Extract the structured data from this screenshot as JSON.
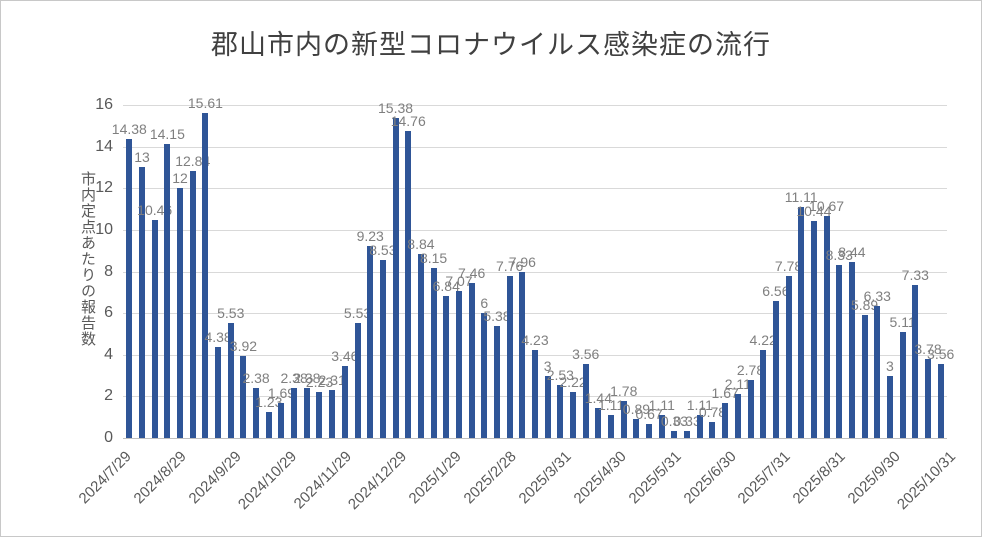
{
  "title": "郡山市内の新型コロナウイルス感染症の流行",
  "y_axis": {
    "label": "市内定点あたりの報告数",
    "ticks": [
      "0",
      "2",
      "4",
      "6",
      "8",
      "10",
      "12",
      "14",
      "16"
    ]
  },
  "chart_data": {
    "type": "bar",
    "title": "郡山市内の新型コロナウイルス感染症の流行",
    "ylabel": "市内定点あたりの報告数",
    "ylim": [
      0,
      16
    ],
    "grid": true,
    "bar_color": "#2f5597",
    "label_color": "#7f7f7f",
    "grid_color": "#d9d9d9",
    "x_tick_labels": [
      "2024/7/29",
      "2024/8/29",
      "2024/9/29",
      "2024/10/29",
      "2024/11/29",
      "2024/12/29",
      "2025/1/29",
      "2025/2/28",
      "2025/3/31",
      "2025/4/30",
      "2025/5/31",
      "2025/6/30",
      "2025/7/31",
      "2025/8/31",
      "2025/9/30",
      "2025/10/31"
    ],
    "values": [
      14.38,
      13,
      10.46,
      14.15,
      12,
      12.84,
      15.61,
      4.38,
      5.53,
      3.92,
      2.38,
      1.23,
      1.69,
      2.38,
      2.38,
      2.23,
      2.31,
      3.46,
      5.53,
      9.23,
      8.53,
      15.38,
      14.76,
      8.84,
      8.15,
      6.84,
      7.07,
      7.46,
      6,
      5.38,
      7.76,
      7.96,
      4.23,
      3,
      2.53,
      2.22,
      3.56,
      1.44,
      1.11,
      1.78,
      0.89,
      0.67,
      1.11,
      0.33,
      0.33,
      1.11,
      0.78,
      1.67,
      2.11,
      2.78,
      4.22,
      6.56,
      7.78,
      11.11,
      10.44,
      10.67,
      8.33,
      8.44,
      5.89,
      6.33,
      3,
      5.11,
      7.33,
      3.78,
      3.56
    ],
    "labels": [
      "14.38",
      "13",
      "10.46",
      "14.15",
      "12",
      "12.84",
      "15.61",
      "4.38",
      "5.53",
      "3.92",
      "2.38",
      "1.23",
      "1.69",
      "2.38",
      "2.38",
      "2.23",
      "2.31",
      "3.46",
      "5.53",
      "9.23",
      "8.53",
      "15.38",
      "14.76",
      "8.84",
      "8.15",
      "6.84",
      "7.07",
      "7.46",
      "6",
      "5.38",
      "7.76",
      "7.96",
      "4.23",
      "3",
      "2.53",
      "2.22",
      "3.56",
      "1.44",
      "1.11",
      "1.78",
      "0.89",
      "0.67",
      "1.11",
      "0.33",
      "0.33",
      "1.11",
      "0.78",
      "1.67",
      "2.11",
      "2.78",
      "4.22",
      "6.56",
      "7.78",
      "11.11",
      "10.44",
      "10.67",
      "8.33",
      "8.44",
      "5.89",
      "6.33",
      "3",
      "5.11",
      "7.33",
      "3.78",
      "3.56"
    ]
  }
}
